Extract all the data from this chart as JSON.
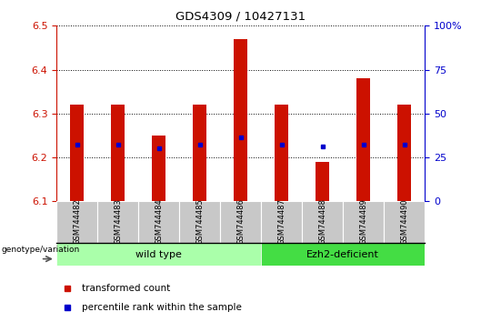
{
  "title": "GDS4309 / 10427131",
  "samples": [
    "GSM744482",
    "GSM744483",
    "GSM744484",
    "GSM744485",
    "GSM744486",
    "GSM744487",
    "GSM744488",
    "GSM744489",
    "GSM744490"
  ],
  "transformed_counts": [
    6.32,
    6.32,
    6.25,
    6.32,
    6.47,
    6.32,
    6.19,
    6.38,
    6.32
  ],
  "percentile_ranks": [
    6.23,
    6.23,
    6.22,
    6.23,
    6.245,
    6.23,
    6.225,
    6.23,
    6.23
  ],
  "ylim": [
    6.1,
    6.5
  ],
  "yticks_left": [
    6.1,
    6.2,
    6.3,
    6.4,
    6.5
  ],
  "yticks_right": [
    0,
    25,
    50,
    75,
    100
  ],
  "bar_color": "#cc1100",
  "dot_color": "#0000cc",
  "bar_width": 0.35,
  "groups": [
    {
      "label": "wild type",
      "start": 0,
      "end": 4,
      "color": "#aaffaa"
    },
    {
      "label": "Ezh2-deficient",
      "start": 5,
      "end": 8,
      "color": "#44dd44"
    }
  ],
  "genotype_label": "genotype/variation",
  "legend_items": [
    {
      "color": "#cc1100",
      "label": "transformed count"
    },
    {
      "color": "#0000cc",
      "label": "percentile rank within the sample"
    }
  ],
  "left_axis_color": "#cc1100",
  "right_axis_color": "#0000cc",
  "tick_label_bg": "#c8c8c8"
}
